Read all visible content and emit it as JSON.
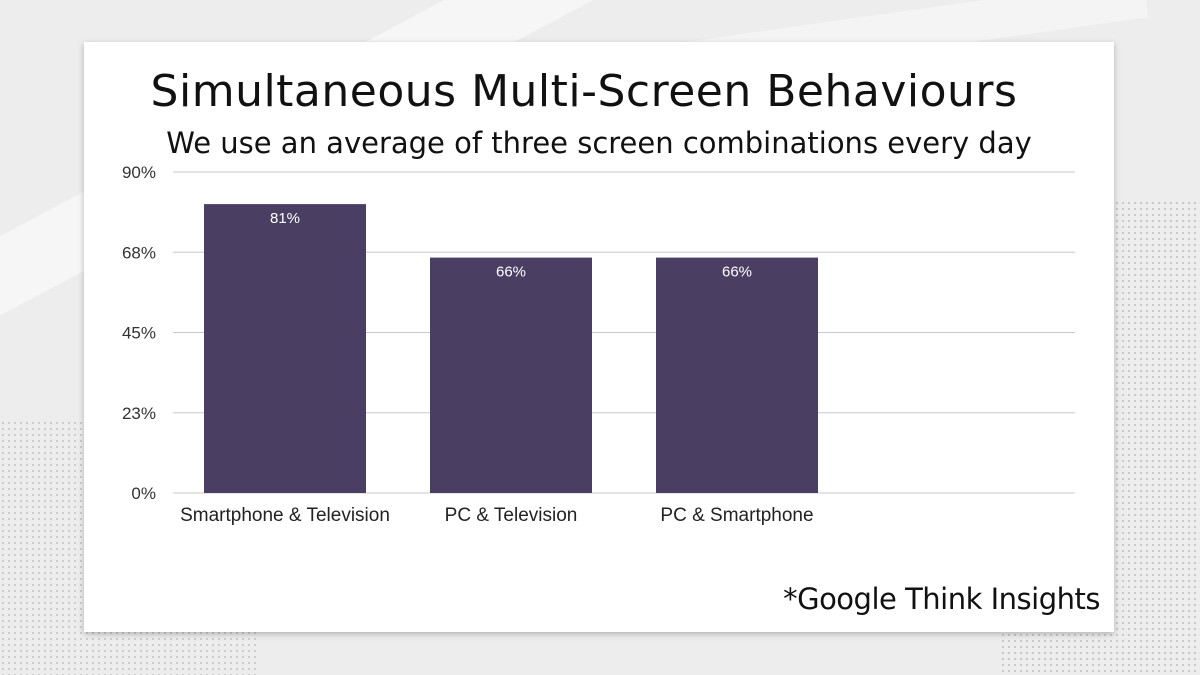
{
  "slide": {
    "credit": "*Google Think Insights"
  },
  "colors": {
    "bar": "#4a3f63",
    "grid": "#c8c8c8"
  },
  "chart_data": {
    "type": "bar",
    "title": "Simultaneous Multi-Screen Behaviours",
    "subtitle": "We use an average of three screen combinations every day",
    "categories": [
      "Smartphone & Television",
      "PC & Television",
      "PC & Smartphone"
    ],
    "values": [
      81,
      66,
      66
    ],
    "data_labels": [
      "81%",
      "66%",
      "66%"
    ],
    "yticks": [
      0,
      22.5,
      45,
      67.5,
      90
    ],
    "ytick_labels": [
      "0%",
      "23%",
      "45%",
      "68%",
      "90%"
    ],
    "ylim": [
      0,
      90
    ],
    "grid": true
  }
}
